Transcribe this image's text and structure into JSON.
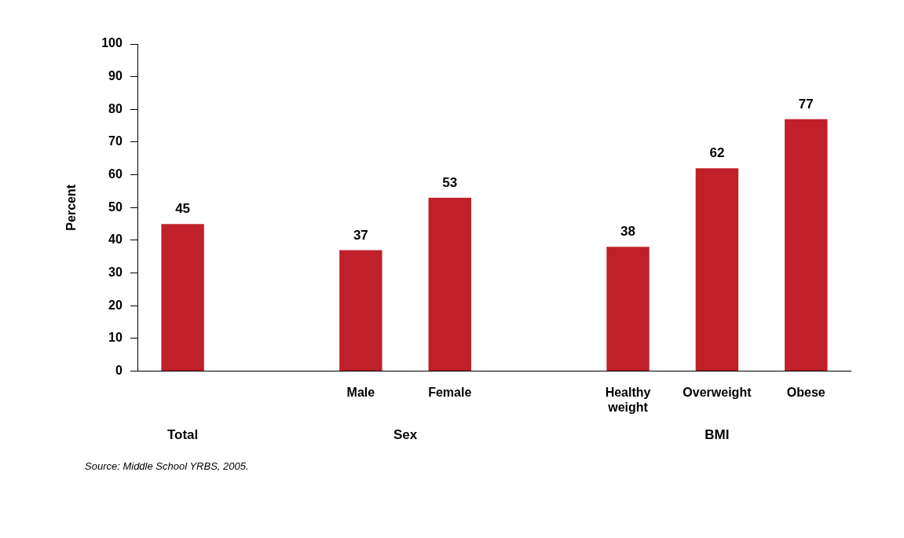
{
  "chart_data": {
    "type": "bar",
    "ylabel": "Percent",
    "categories": [
      null,
      null,
      "Male",
      "Female",
      null,
      "Healthy weight",
      "Overweight",
      "Obese"
    ],
    "values": [
      45,
      null,
      37,
      53,
      null,
      38,
      62,
      77
    ],
    "color": "#c0202a",
    "ylim": [
      0,
      100
    ],
    "yticks": [
      0,
      10,
      20,
      30,
      40,
      50,
      60,
      70,
      80,
      90,
      100
    ],
    "grid": false,
    "legend": false,
    "data_labels": true,
    "annotations": [
      "Total",
      "Sex",
      "BMI",
      "Source: Middle School YRBS, 2005."
    ]
  }
}
